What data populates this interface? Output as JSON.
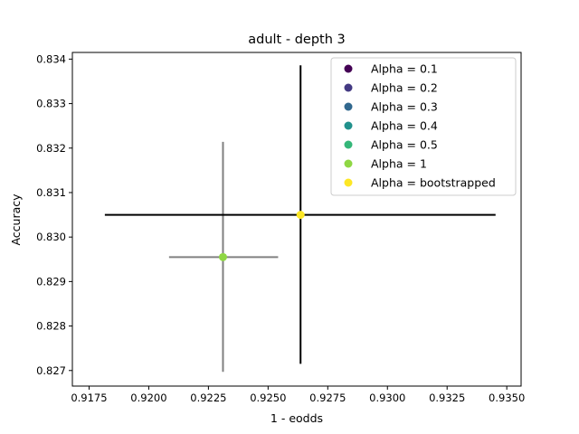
{
  "chart_data": {
    "type": "scatter",
    "title": "adult - depth 3",
    "xlabel": "1 - eodds",
    "ylabel": "Accuracy",
    "xlim": [
      0.9168,
      0.9356
    ],
    "ylim": [
      0.82665,
      0.83415
    ],
    "x_ticks": [
      "0.9175",
      "0.9200",
      "0.9225",
      "0.9250",
      "0.9275",
      "0.9300",
      "0.9325",
      "0.9350"
    ],
    "y_ticks": [
      "0.827",
      "0.828",
      "0.829",
      "0.830",
      "0.831",
      "0.832",
      "0.833",
      "0.834"
    ],
    "grid": false,
    "legend_position": "top-right",
    "series": [
      {
        "name": "Alpha = 0.1",
        "color": "#440154",
        "points": []
      },
      {
        "name": "Alpha = 0.2",
        "color": "#443a83",
        "points": []
      },
      {
        "name": "Alpha = 0.3",
        "color": "#31688e",
        "points": []
      },
      {
        "name": "Alpha = 0.4",
        "color": "#21918c",
        "points": []
      },
      {
        "name": "Alpha = 0.5",
        "color": "#35b779",
        "points": []
      },
      {
        "name": "Alpha = 1",
        "color": "#8fd744",
        "points": [
          {
            "x": 0.92311,
            "y": 0.82955,
            "xerr": [
              0.92085,
              0.92542
            ],
            "yerr": [
              0.82697,
              0.83214
            ],
            "err_color": "#808080"
          }
        ]
      },
      {
        "name": "Alpha = bootstrapped",
        "color": "#fde725",
        "points": [
          {
            "x": 0.92636,
            "y": 0.8305,
            "xerr": [
              0.91816,
              0.93453
            ],
            "yerr": [
              0.82715,
              0.83386
            ],
            "err_color": "#000000"
          }
        ]
      }
    ]
  }
}
